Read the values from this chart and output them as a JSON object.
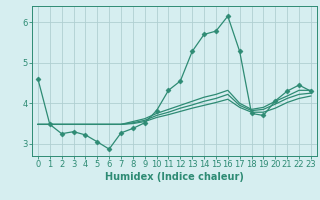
{
  "xlabel": "Humidex (Indice chaleur)",
  "background_color": "#d6eef0",
  "grid_color": "#b0cfd2",
  "line_color": "#2e8b74",
  "xlim": [
    -0.5,
    23.5
  ],
  "ylim": [
    2.7,
    6.4
  ],
  "yticks": [
    3,
    4,
    5,
    6
  ],
  "xticks": [
    0,
    1,
    2,
    3,
    4,
    5,
    6,
    7,
    8,
    9,
    10,
    11,
    12,
    13,
    14,
    15,
    16,
    17,
    18,
    19,
    20,
    21,
    22,
    23
  ],
  "series": [
    [
      4.6,
      3.48,
      3.25,
      3.3,
      3.22,
      3.05,
      2.87,
      3.27,
      3.38,
      3.52,
      3.82,
      4.32,
      4.55,
      5.28,
      5.7,
      5.78,
      6.15,
      5.28,
      3.75,
      3.7,
      4.06,
      4.3,
      4.45,
      4.3
    ],
    [
      3.48,
      3.48,
      3.48,
      3.48,
      3.48,
      3.48,
      3.48,
      3.48,
      3.5,
      3.55,
      3.65,
      3.72,
      3.8,
      3.88,
      3.95,
      4.02,
      4.1,
      3.9,
      3.78,
      3.78,
      3.88,
      4.02,
      4.12,
      4.18
    ],
    [
      3.48,
      3.48,
      3.48,
      3.48,
      3.48,
      3.48,
      3.48,
      3.48,
      3.52,
      3.58,
      3.7,
      3.78,
      3.88,
      3.96,
      4.05,
      4.12,
      4.22,
      3.95,
      3.82,
      3.85,
      3.98,
      4.12,
      4.22,
      4.25
    ],
    [
      3.48,
      3.48,
      3.48,
      3.48,
      3.48,
      3.48,
      3.48,
      3.48,
      3.55,
      3.62,
      3.75,
      3.85,
      3.95,
      4.05,
      4.15,
      4.22,
      4.32,
      4.0,
      3.85,
      3.9,
      4.05,
      4.18,
      4.32,
      4.32
    ]
  ],
  "marker_series": 0,
  "marker": "D",
  "marker_size": 2.5,
  "line_width": 0.9,
  "font_size_label": 7,
  "font_size_tick": 6
}
